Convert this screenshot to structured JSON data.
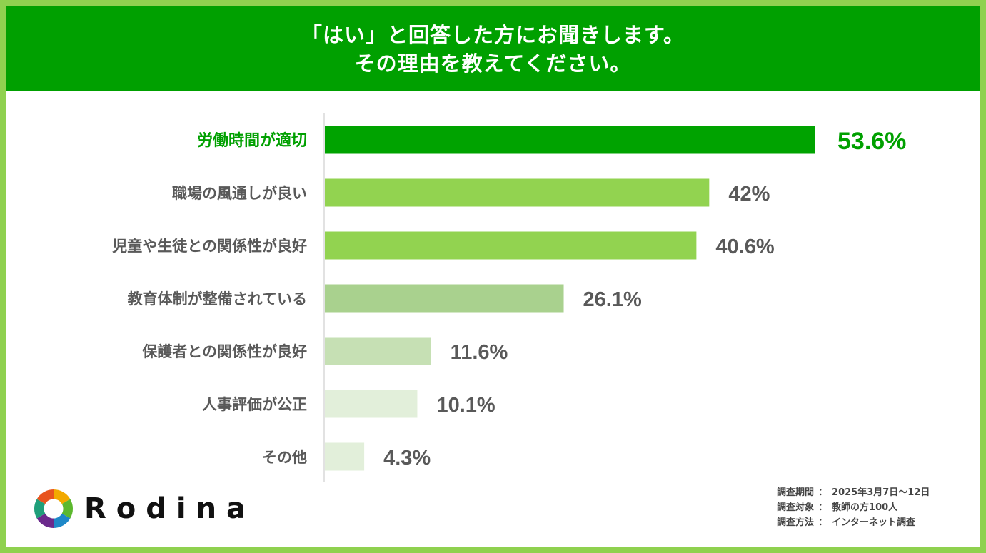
{
  "title": {
    "line1": "「はい」と回答した方にお聞きします。",
    "line2": "その理由を教えてください。"
  },
  "colors": {
    "frame": "#8fd14f",
    "header_bg": "#00a000",
    "highlight_text": "#00a000",
    "axis": "#d9d9d9"
  },
  "chart_data": {
    "type": "bar",
    "orientation": "horizontal",
    "categories": [
      "労働時間が適切",
      "職場の風通しが良い",
      "児童や生徒との関係性が良好",
      "教育体制が整備されている",
      "保護者との関係性が良好",
      "人事評価が公正",
      "その他"
    ],
    "values": [
      53.6,
      42,
      40.6,
      26.1,
      11.6,
      10.1,
      4.3
    ],
    "value_labels": [
      "53.6%",
      "42%",
      "40.6%",
      "26.1%",
      "11.6%",
      "10.1%",
      "4.3%"
    ],
    "bar_colors": [
      "#00a300",
      "#92d350",
      "#92d350",
      "#a9d18e",
      "#c6e0b4",
      "#e2efda",
      "#e2efda"
    ],
    "highlight_index": 0,
    "xlim": [
      0,
      60
    ],
    "grid": false,
    "legend": "none"
  },
  "logo": {
    "text": "Rodina",
    "icon": "camera-aperture-icon"
  },
  "survey": {
    "period_label": "調査期間",
    "period_value": "2025年3月7日～12日",
    "target_label": "調査対象",
    "target_value": "教師の方100人",
    "method_label": "調査方法",
    "method_value": "インターネット調査",
    "separator": "："
  }
}
